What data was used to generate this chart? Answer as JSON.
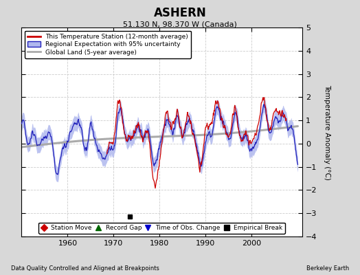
{
  "title": "ASHERN",
  "subtitle": "51.130 N, 98.370 W (Canada)",
  "ylabel": "Temperature Anomaly (°C)",
  "footer_left": "Data Quality Controlled and Aligned at Breakpoints",
  "footer_right": "Berkeley Earth",
  "xlim": [
    1950,
    2011
  ],
  "ylim": [
    -4,
    5
  ],
  "yticks": [
    -4,
    -3,
    -2,
    -1,
    0,
    1,
    2,
    3,
    4,
    5
  ],
  "xticks": [
    1960,
    1970,
    1980,
    1990,
    2000
  ],
  "outer_bg_color": "#d8d8d8",
  "plot_bg_color": "#ffffff",
  "red_color": "#cc0000",
  "blue_color": "#2222bb",
  "blue_fill_color": "#b0b8ee",
  "gray_color": "#aaaaaa",
  "empirical_break_year": 1973.5,
  "empirical_break_value": -3.15,
  "legend_items": [
    "This Temperature Station (12-month average)",
    "Regional Expectation with 95% uncertainty",
    "Global Land (5-year average)"
  ],
  "marker_legend": [
    {
      "marker": "D",
      "color": "#cc0000",
      "label": "Station Move"
    },
    {
      "marker": "^",
      "color": "#006600",
      "label": "Record Gap"
    },
    {
      "marker": "v",
      "color": "#0000cc",
      "label": "Time of Obs. Change"
    },
    {
      "marker": "s",
      "color": "#000000",
      "label": "Empirical Break"
    }
  ]
}
